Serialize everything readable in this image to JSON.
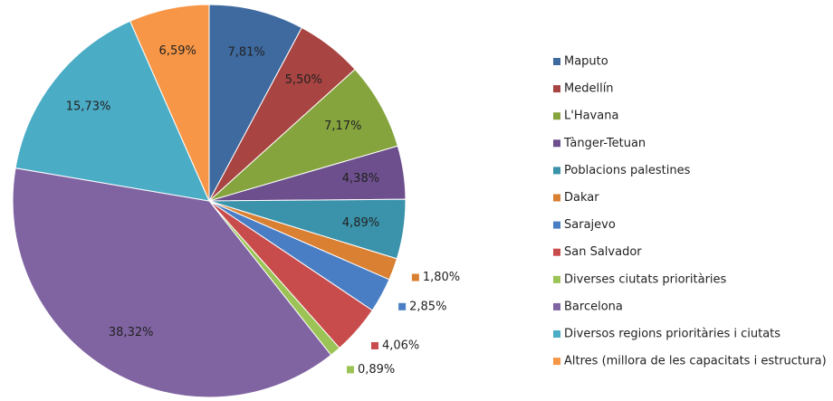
{
  "chart_data": {
    "type": "pie",
    "categories": [
      "Maputo",
      "Medellín",
      "L'Havana",
      "Tànger-Tetuan",
      "Poblacions palestines",
      "Dakar",
      "Sarajevo",
      "San Salvador",
      "Diverses ciutats prioritàries",
      "Barcelona",
      "Diversos regions prioritàries i ciutats",
      "Altres (millora de les capacitats i estructura)"
    ],
    "values": [
      7.81,
      5.5,
      7.17,
      4.38,
      4.89,
      1.8,
      2.85,
      4.06,
      0.89,
      38.32,
      15.73,
      6.59
    ],
    "value_labels": [
      "7,81%",
      "5,50%",
      "7,17%",
      "4,38%",
      "4,89%",
      "1,80%",
      "2,85%",
      "4,06%",
      "0,89%",
      "38,32%",
      "15,73%",
      "6,59%"
    ],
    "colors": [
      "#3e6aa0",
      "#a84442",
      "#86a43e",
      "#6c4f8c",
      "#3a93ab",
      "#d98032",
      "#4a7ec4",
      "#c94c4c",
      "#9bc355",
      "#8064a2",
      "#4bacc6",
      "#f79646"
    ],
    "legend": "right"
  }
}
